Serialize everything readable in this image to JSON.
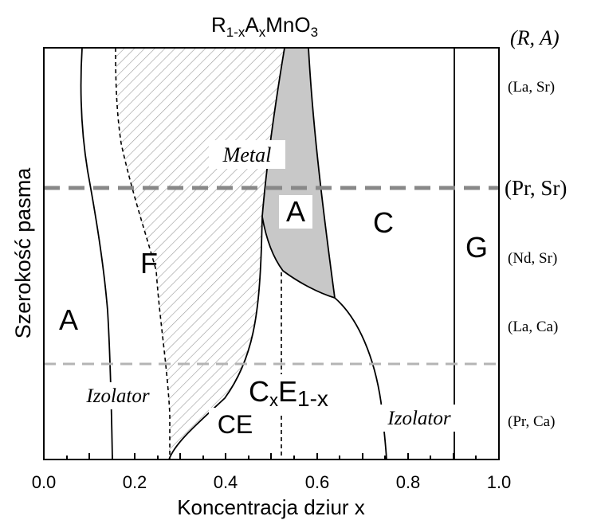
{
  "title": {
    "base": "R",
    "sub1": "1-x",
    "mid": "A",
    "sub2": "x",
    "tail": "MnO",
    "sub3": "3"
  },
  "x_axis": {
    "label": "Koncentracja dziur x",
    "ticks": [
      "0.0",
      "0.2",
      "0.4",
      "0.6",
      "0.8",
      "1.0"
    ]
  },
  "y_axis": {
    "label": "Szerokość pasma"
  },
  "right_labels": {
    "header": "(R, A)",
    "la_sr": "(La, Sr)",
    "pr_sr": "(Pr, Sr)",
    "nd_sr": "(Nd, Sr)",
    "la_ca": "(La, Ca)",
    "pr_ca": "(Pr, Ca)"
  },
  "phases": {
    "a_left": "A",
    "f": "F",
    "a_metal": "A",
    "c": "C",
    "g": "G",
    "ce": "CE",
    "cxe_base1": "C",
    "cxe_sub1": "x",
    "cxe_base2": "E",
    "cxe_sub2": "1-x",
    "metal": "Metal",
    "izolator_left": "Izolator",
    "izolator_right": "Izolator"
  },
  "colors": {
    "axis": "#000000",
    "metal_fill": "#c8c8c8",
    "pr_sr_line": "#888888",
    "pr_ca_line": "#b4b4b4",
    "hatch": "#9a9a9a"
  }
}
